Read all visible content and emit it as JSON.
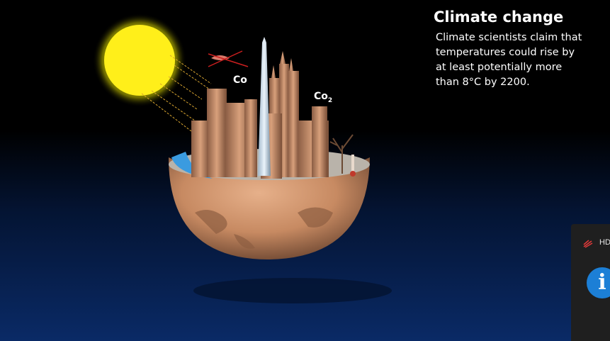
{
  "slide": {
    "title": "Climate change",
    "body": "Climate scientists claim that temperatures could rise by at least potentially more than 8°C by 2200.",
    "label_co": "Co",
    "label_co2_base": "Co",
    "label_co2_sub": "2"
  },
  "side_panel": {
    "hd_label": "HD",
    "info_glyph": "i"
  },
  "colors": {
    "sun": "#ffe600",
    "earth": "#c98a63",
    "background_top": "#000000",
    "background_bottom": "#0a2a66",
    "info_button": "#1c7fd6"
  }
}
